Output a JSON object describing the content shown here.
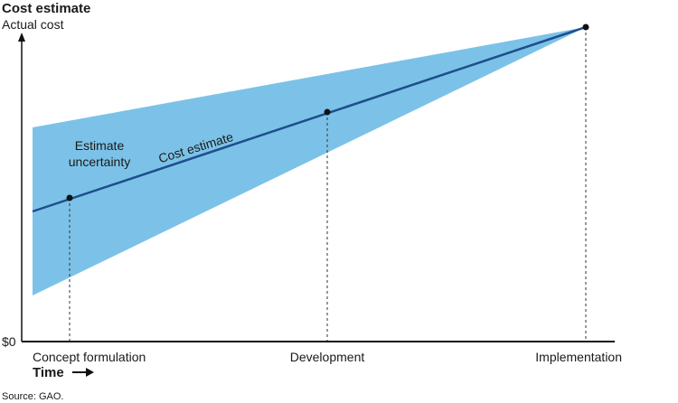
{
  "title": "Cost estimate",
  "y_axis_label": "Actual cost",
  "y_origin_label": "$0",
  "x_axis_label": "Time",
  "source": "Source: GAO.",
  "phases": [
    "Concept formulation",
    "Development",
    "Implementation"
  ],
  "annotations": {
    "uncertainty_line1": "Estimate",
    "uncertainty_line2": "uncertainty",
    "estimate_line": "Cost estimate"
  },
  "colors": {
    "uncertainty_band": "#7cc2e8",
    "estimate_line": "#1f4e8c",
    "axis": "#111111",
    "marker": "#111111"
  },
  "icons": {
    "time_arrow": "right-arrow-icon"
  }
}
